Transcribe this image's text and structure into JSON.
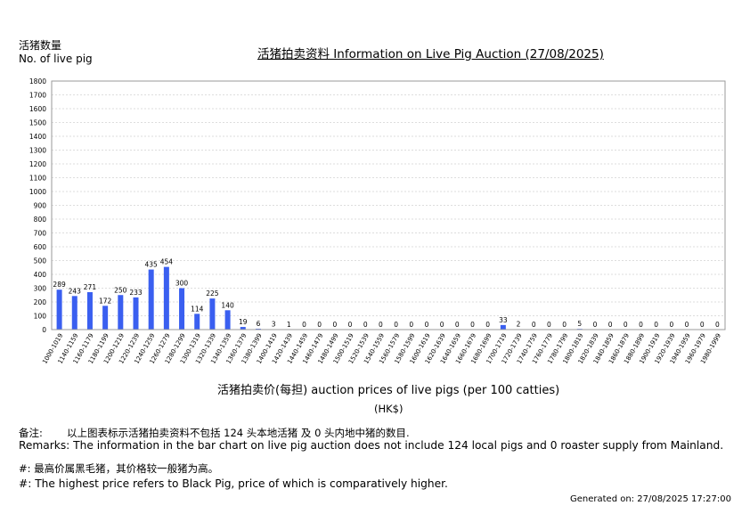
{
  "title": "活猪拍卖资料 Information on Live Pig Auction (27/08/2025)",
  "y_axis_label_cn": "活猪数量",
  "y_axis_label_en": "No. of live pig",
  "x_axis_label": "活猪拍卖价(每担) auction prices of live pigs (per 100 catties)",
  "unit": "(HK$)",
  "remarks_cn_label": "备注:",
  "remarks_cn_text": "以上图表标示活猪拍卖资料不包括 124 头本地活猪 及 0 头内地中猪的数目.",
  "remarks_en": "Remarks: The information in the bar chart on live pig auction does not include 124 local pigs and 0 roaster supply from Mainland.",
  "note_cn": "#: 最高价属黑毛猪，其价格较一般猪为高。",
  "note_en": "#: The highest price refers to Black Pig, price of which is comparatively higher.",
  "generated": "Generated on: 27/08/2025 17:27:00",
  "colors": {
    "bar": "#3a5ff0",
    "grid": "#dddddd",
    "axis": "#999999"
  },
  "chart_data": {
    "type": "bar",
    "title": "活猪拍卖资料 Information on Live Pig Auction (27/08/2025)",
    "xlabel": "活猪拍卖价(每担) auction prices of live pigs (per 100 catties)",
    "ylabel": "No. of live pig",
    "ylim": [
      0,
      1800
    ],
    "yticks": [
      0,
      100,
      200,
      300,
      400,
      500,
      600,
      700,
      800,
      900,
      1000,
      1100,
      1200,
      1300,
      1400,
      1500,
      1600,
      1700,
      1800
    ],
    "grid": true,
    "categories": [
      "1000-1019",
      "1140-1159",
      "1160-1179",
      "1180-1199",
      "1200-1219",
      "1220-1239",
      "1240-1259",
      "1260-1279",
      "1280-1299",
      "1300-1319",
      "1320-1339",
      "1340-1359",
      "1360-1379",
      "1380-1399",
      "1400-1419",
      "1420-1439",
      "1440-1459",
      "1460-1479",
      "1480-1499",
      "1500-1519",
      "1520-1539",
      "1540-1559",
      "1560-1579",
      "1580-1599",
      "1600-1619",
      "1620-1639",
      "1640-1659",
      "1660-1679",
      "1680-1699",
      "1700-1719",
      "1720-1739",
      "1740-1759",
      "1760-1779",
      "1780-1799",
      "1800-1819",
      "1820-1839",
      "1840-1859",
      "1860-1879",
      "1880-1899",
      "1900-1919",
      "1920-1939",
      "1940-1959",
      "1960-1979",
      "1980-1999"
    ],
    "values": [
      289,
      243,
      271,
      172,
      250,
      233,
      435,
      454,
      300,
      114,
      225,
      140,
      19,
      6,
      3,
      1,
      0,
      0,
      0,
      0,
      0,
      0,
      0,
      0,
      0,
      0,
      0,
      0,
      0,
      33,
      2,
      0,
      0,
      0,
      5,
      0,
      0,
      0,
      0,
      0,
      0,
      0,
      0,
      0
    ]
  }
}
